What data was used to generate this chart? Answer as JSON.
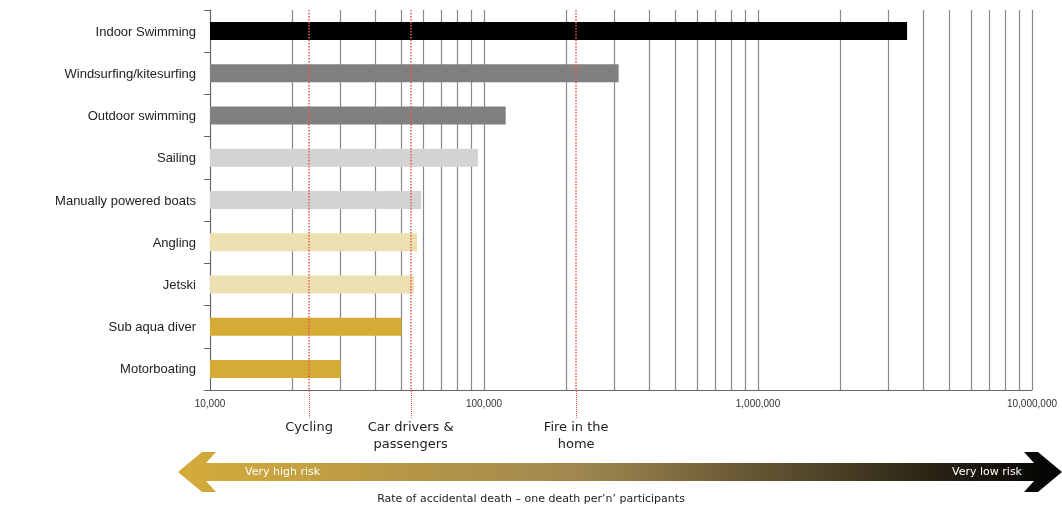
{
  "chart_data": {
    "type": "bar",
    "orientation": "horizontal",
    "log": "x",
    "categories": [
      "Indoor Swimming",
      "Windsurfing/kitesurfing",
      "Outdoor swimming",
      "Sailing",
      "Manually powered boats",
      "Angling",
      "Jetski",
      "Sub aqua diver",
      "Motorboating"
    ],
    "values": [
      3500000,
      310000,
      120000,
      95000,
      59000,
      57000,
      55500,
      50000,
      30000
    ],
    "colors": [
      "#000000",
      "#808080",
      "#808080",
      "#d3d3d3",
      "#d3d3d3",
      "#ecdfb0",
      "#ecdfb0",
      "#d6ab35",
      "#d6ab35"
    ],
    "xlim": [
      10000,
      10000000
    ],
    "xticks": [
      {
        "value": 10000,
        "label": "10,000"
      },
      {
        "value": 20000,
        "label": null
      },
      {
        "value": 30000,
        "label": null
      },
      {
        "value": 40000,
        "label": null
      },
      {
        "value": 50000,
        "label": null
      },
      {
        "value": 60000,
        "label": null
      },
      {
        "value": 70000,
        "label": null
      },
      {
        "value": 80000,
        "label": null
      },
      {
        "value": 90000,
        "label": null
      },
      {
        "value": 100000,
        "label": "100,000"
      },
      {
        "value": 200000,
        "label": null
      },
      {
        "value": 300000,
        "label": null
      },
      {
        "value": 400000,
        "label": null
      },
      {
        "value": 500000,
        "label": null
      },
      {
        "value": 600000,
        "label": null
      },
      {
        "value": 700000,
        "label": null
      },
      {
        "value": 800000,
        "label": null
      },
      {
        "value": 900000,
        "label": null
      },
      {
        "value": 1000000,
        "label": "1,000,000"
      },
      {
        "value": 2000000,
        "label": null
      },
      {
        "value": 3000000,
        "label": null
      },
      {
        "value": 4000000,
        "label": null
      },
      {
        "value": 5000000,
        "label": null
      },
      {
        "value": 6000000,
        "label": null
      },
      {
        "value": 7000000,
        "label": null
      },
      {
        "value": 8000000,
        "label": null
      },
      {
        "value": 9000000,
        "label": null
      },
      {
        "value": 10000000,
        "label": "10,000,000"
      }
    ],
    "grid": "x",
    "ref_lines": [
      {
        "axis": "x",
        "value": 23000,
        "label": "Cycling",
        "color": "#e8585a",
        "line_style": "dotted"
      },
      {
        "axis": "x",
        "value": 54000,
        "label": "Car drivers & passengers",
        "color": "#e8585a",
        "line_style": "dotted"
      },
      {
        "axis": "x",
        "value": 217000,
        "label": "Fire in the home",
        "color": "#e8585a",
        "line_style": "dotted"
      }
    ],
    "annotations": [
      "Very high risk",
      "Very low risk",
      "Rate of accidental death – one death per’n’ participants"
    ]
  }
}
